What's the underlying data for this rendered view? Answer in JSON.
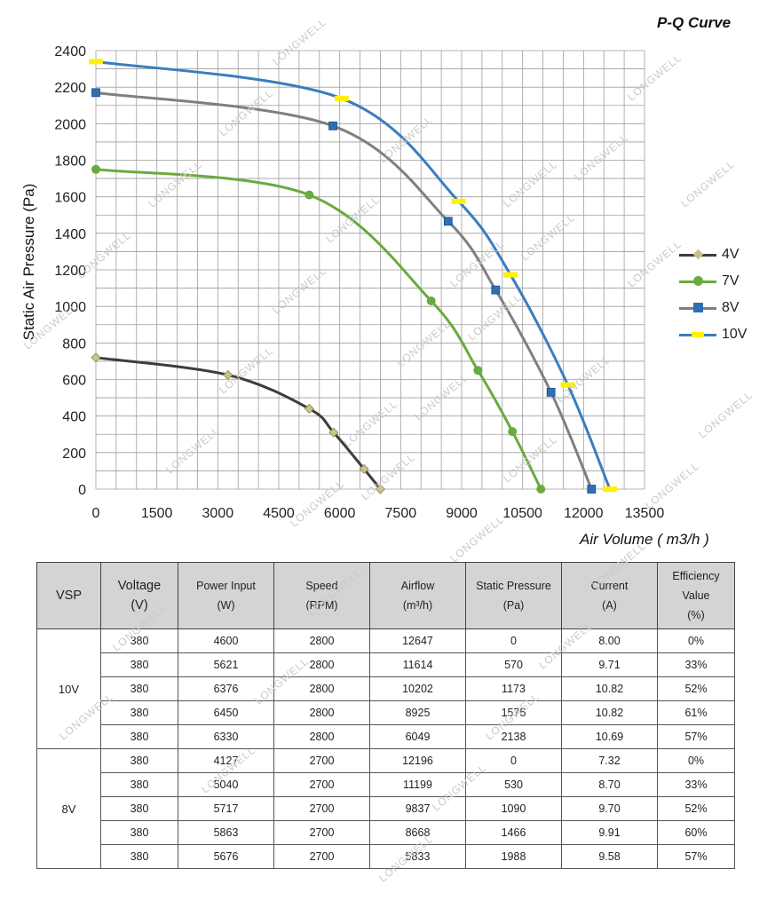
{
  "chart_data": {
    "type": "line",
    "title": "P-Q Curve",
    "xlabel": "Air Volume ( m3/h )",
    "ylabel": "Static Air Pressure  (Pa)",
    "xlim": [
      0,
      13500
    ],
    "ylim": [
      0,
      2400
    ],
    "x_ticks": [
      "0",
      "1500",
      "3000",
      "4500",
      "6000",
      "7500",
      "9000",
      "10500",
      "12000",
      "13500"
    ],
    "y_ticks": [
      "0",
      "200",
      "400",
      "600",
      "800",
      "1000",
      "1200",
      "1400",
      "1600",
      "1800",
      "2000",
      "2200",
      "2400"
    ],
    "grid": true,
    "legend_position": "right",
    "series": [
      {
        "name": "4V",
        "color": "#3d3d3d",
        "marker": "diamond",
        "marker_color": "#c9c28a",
        "x": [
          0,
          3250,
          5250,
          5850,
          6600,
          7000
        ],
        "y": [
          720,
          625,
          440,
          310,
          110,
          0
        ]
      },
      {
        "name": "7V",
        "color": "#6aaa3f",
        "marker": "circle",
        "marker_color": "#6aaa3f",
        "x": [
          0,
          5250,
          8250,
          9400,
          10250,
          10950
        ],
        "y": [
          1750,
          1610,
          1030,
          650,
          315,
          0
        ]
      },
      {
        "name": "8V",
        "color": "#7f7f7f",
        "marker": "square",
        "marker_color": "#2f6fb5",
        "x": [
          0,
          5833,
          8668,
          9837,
          11199,
          12196
        ],
        "y": [
          2170,
          1988,
          1466,
          1090,
          530,
          0
        ]
      },
      {
        "name": "10V",
        "color": "#3a7dbf",
        "marker": "bar",
        "marker_color": "#fff200",
        "x": [
          0,
          6049,
          8925,
          10202,
          11614,
          12647
        ],
        "y": [
          2340,
          2138,
          1575,
          1173,
          570,
          0
        ]
      }
    ]
  },
  "watermark": "LONGWELL",
  "table": {
    "headers": [
      {
        "name": "vsp",
        "lines": [
          "VSP"
        ]
      },
      {
        "name": "voltage",
        "lines": [
          "Voltage",
          "(V)"
        ]
      },
      {
        "name": "power-input",
        "lines": [
          "Power Input",
          "(W)"
        ]
      },
      {
        "name": "speed",
        "lines": [
          "Speed",
          "(RPM)"
        ]
      },
      {
        "name": "airflow",
        "lines": [
          "Airflow",
          "(m³/h)"
        ]
      },
      {
        "name": "static-pressure",
        "lines": [
          "Static Pressure",
          "(Pa)"
        ]
      },
      {
        "name": "current",
        "lines": [
          "Current",
          "(A)"
        ]
      },
      {
        "name": "efficiency",
        "lines": [
          "Efficiency",
          "Value",
          "(%)"
        ]
      }
    ],
    "groups": [
      {
        "vsp": "10V",
        "rows": [
          [
            "380",
            "4600",
            "2800",
            "12647",
            "0",
            "8.00",
            "0%"
          ],
          [
            "380",
            "5621",
            "2800",
            "11614",
            "570",
            "9.71",
            "33%"
          ],
          [
            "380",
            "6376",
            "2800",
            "10202",
            "1173",
            "10.82",
            "52%"
          ],
          [
            "380",
            "6450",
            "2800",
            "8925",
            "1575",
            "10.82",
            "61%"
          ],
          [
            "380",
            "6330",
            "2800",
            "6049",
            "2138",
            "10.69",
            "57%"
          ]
        ]
      },
      {
        "vsp": "8V",
        "rows": [
          [
            "380",
            "4127",
            "2700",
            "12196",
            "0",
            "7.32",
            "0%"
          ],
          [
            "380",
            "5040",
            "2700",
            "11199",
            "530",
            "8.70",
            "33%"
          ],
          [
            "380",
            "5717",
            "2700",
            "9837",
            "1090",
            "9.70",
            "52%"
          ],
          [
            "380",
            "5863",
            "2700",
            "8668",
            "1466",
            "9.91",
            "60%"
          ],
          [
            "380",
            "5676",
            "2700",
            "5833",
            "1988",
            "9.58",
            "57%"
          ]
        ]
      }
    ]
  }
}
